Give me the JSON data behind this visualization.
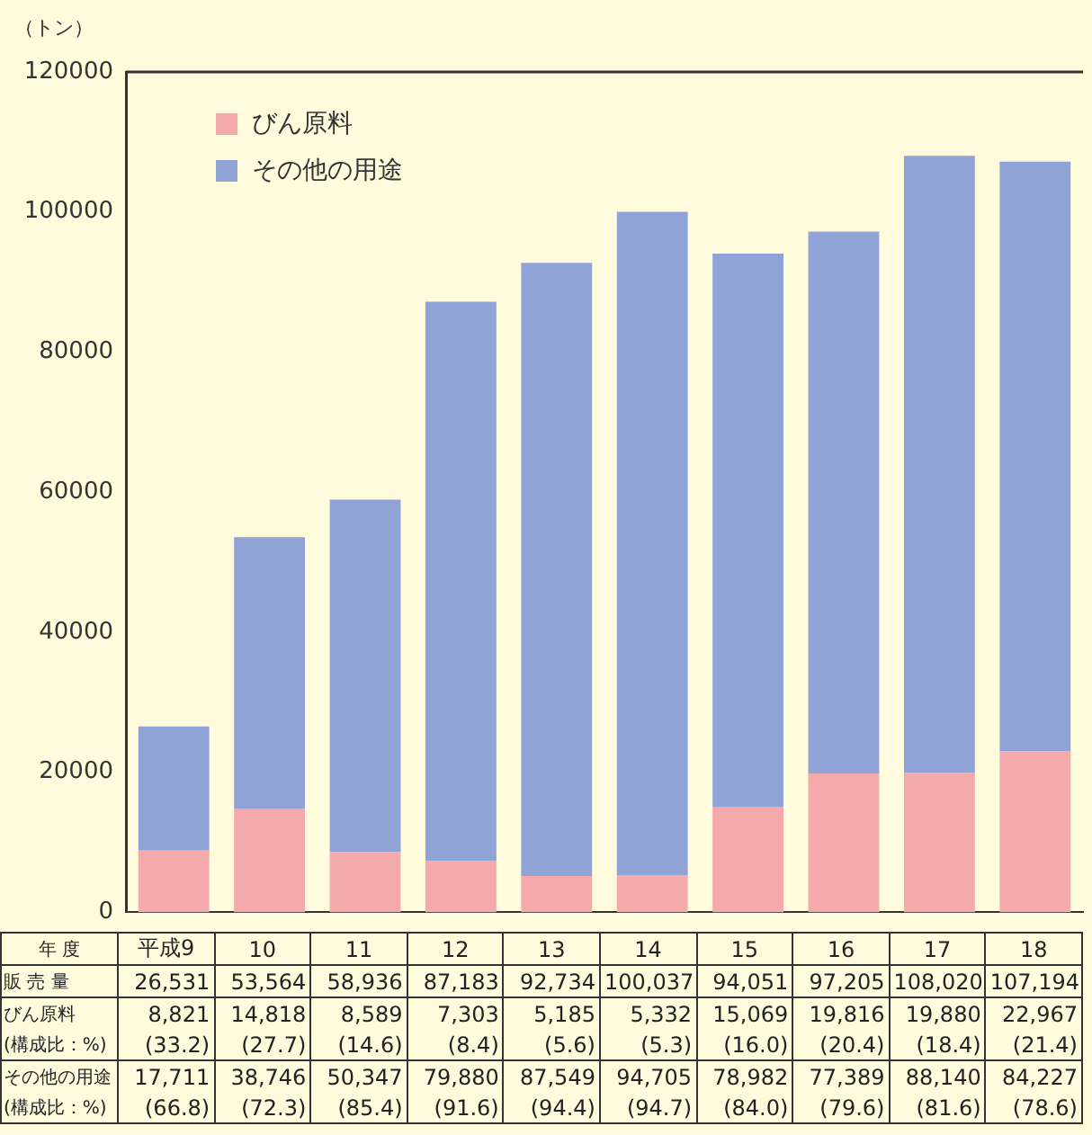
{
  "chart_data": {
    "type": "bar",
    "stacked": true,
    "ylabel": "（トン）",
    "xlabel": "年 度",
    "categories": [
      "平成9",
      "10",
      "11",
      "12",
      "13",
      "14",
      "15",
      "16",
      "17",
      "18"
    ],
    "series": [
      {
        "name": "びん原料",
        "color": "#f4a9ab",
        "values": [
          8821,
          14818,
          8589,
          7303,
          5185,
          5332,
          15069,
          19816,
          19880,
          22967
        ],
        "value_labels": [
          "8,821",
          "14,818",
          "8,589",
          "7,303",
          "5,185",
          "5,332",
          "15,069",
          "19,816",
          "19,880",
          "22,967"
        ]
      },
      {
        "name": "その他の用途",
        "color": "#8fa3d6",
        "values": [
          17711,
          38746,
          50347,
          79880,
          87549,
          94705,
          78982,
          77389,
          88140,
          84227
        ],
        "value_labels": [
          "17,711",
          "38,746",
          "50,347",
          "79,880",
          "87,549",
          "94,705",
          "78,982",
          "77,389",
          "88,140",
          "84,227"
        ]
      }
    ],
    "totals": [
      "26,531",
      "53,564",
      "58,936",
      "87,183",
      "92,734",
      "100,037",
      "94,051",
      "97,205",
      "108,020",
      "107,194"
    ],
    "annotations": [
      "販 売 量",
      "(構成比：%)",
      "(33.2)",
      "(27.7)",
      "(14.6)",
      "(8.4)",
      "(5.6)",
      "(5.3)",
      "(16.0)",
      "(20.4)",
      "(18.4)",
      "(21.4)",
      "(66.8)",
      "(72.3)",
      "(85.4)",
      "(91.6)",
      "(94.4)",
      "(94.7)",
      "(84.0)",
      "(79.6)",
      "(81.6)",
      "(78.6)"
    ],
    "ylim": [
      0,
      120000
    ],
    "yticks": [
      0,
      20000,
      40000,
      60000,
      80000,
      100000,
      120000
    ],
    "grid": false,
    "legend": "top left"
  }
}
